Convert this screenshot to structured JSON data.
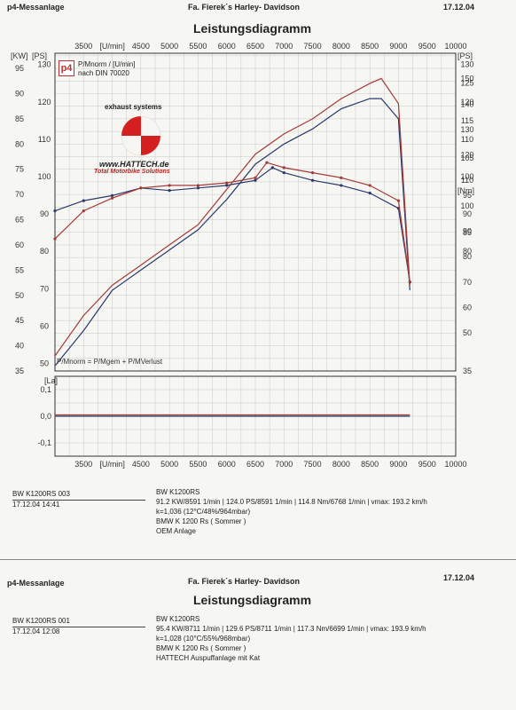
{
  "page1": {
    "header_left": "p4-Messanlage",
    "header_center": "Fa. Fierek´s  Harley- Davidson",
    "header_date": "17.12.04",
    "title": "Leistungsdiagramm",
    "run_id": "BW K1200RS 003",
    "run_date": "17.12.04   14:41",
    "model": "BW K1200RS",
    "result_line": "91.2 KW/8591 1/min  |  124.0 PS/8591 1/min  |  114.8 Nm/6768 1/min | vmax: 193.2 km/h",
    "corr_line": "k=1,036 (12°C/48%/964mbar)",
    "bike": "BMW K 1200 Rs ( Sommer )",
    "config": "OEM Anlage"
  },
  "page2": {
    "header_left": "p4-Messanlage",
    "header_center": "Fa. Fierek´s  Harley- Davidson",
    "header_date": "17.12.04",
    "title": "Leistungsdiagramm",
    "run_id": "BW K1200RS 001",
    "run_date": "17.12.04   12:08",
    "model": "BW K1200RS",
    "result_line": "95.4 KW/8711 1/min  |  129.6 PS/8711 1/min  |  117.3 Nm/6699 1/min | vmax: 193.9 km/h",
    "corr_line": "k=1,028 (10°C/55%/968mbar)",
    "bike": "BMW K 1200 Rs ( Sommer )",
    "config": "HATTECH Auspuffanlage mit Kat"
  },
  "logo": {
    "p4_text": "p4",
    "legend_line1": "P/Mnorm / [U/min]",
    "legend_line2": "nach DIN 70020",
    "brand_caption": "exhaust systems",
    "brand_url": "www.HATTECH.de",
    "brand_slogan": "Total Motorbike Solutions"
  },
  "colors": {
    "oem": "#2a3a6a",
    "hattech": "#a33a3a",
    "grid": "#c8c8c8"
  },
  "chart_data": [
    {
      "type": "line",
      "x_unit": "U/min",
      "xlim": [
        3000,
        10000
      ],
      "x_ticks": [
        "3500",
        "[U/min]",
        "4500",
        "5000",
        "5500",
        "6000",
        "6500",
        "7000",
        "7500",
        "8000",
        "8500",
        "9000",
        "9500",
        "10000"
      ],
      "left_axis_kw": {
        "label": "[KW]",
        "ylim": [
          35,
          98
        ],
        "ticks": [
          "35",
          "40",
          "45",
          "50",
          "55",
          "60",
          "65",
          "70",
          "75",
          "80",
          "85",
          "90",
          "95"
        ]
      },
      "left_axis_ps": {
        "label": "[PS]",
        "ylim": [
          48,
          133
        ],
        "ticks": [
          "50",
          "60",
          "70",
          "80",
          "90",
          "100",
          "110",
          "120",
          "130"
        ]
      },
      "right_axis_ps": {
        "label": "[PS]",
        "ticks": [
          "130",
          "125",
          "120",
          "115",
          "110",
          "105",
          "100",
          "95",
          "90",
          "85",
          "80"
        ]
      },
      "right_axis_nm": {
        "label": "[Nm]",
        "ylim": [
          35,
          160
        ],
        "ticks": [
          "150",
          "140",
          "130",
          "120",
          "110",
          "100",
          "90",
          "80",
          "70",
          "60",
          "50",
          "35"
        ]
      },
      "annotation": "P/Mnorm = P/Mgem + P/MVerlust",
      "series": [
        {
          "name": "BW K1200RS 003",
          "quantity": "power_kw",
          "axis": "kw",
          "x": [
            3000,
            3500,
            4000,
            4500,
            5000,
            5500,
            6000,
            6500,
            7000,
            7500,
            8000,
            8500,
            8700,
            9000,
            9200
          ],
          "y": [
            36,
            43,
            51,
            55,
            59,
            63,
            69,
            76,
            80,
            83,
            87,
            89,
            89,
            85,
            51
          ]
        },
        {
          "name": "BW K1200RS 001",
          "quantity": "power_kw",
          "axis": "kw",
          "x": [
            3000,
            3500,
            4000,
            4500,
            5000,
            5500,
            6000,
            6500,
            7000,
            7500,
            8000,
            8500,
            8700,
            9000,
            9200
          ],
          "y": [
            38,
            46,
            52,
            56,
            60,
            64,
            71,
            78,
            82,
            85,
            89,
            92,
            93,
            88,
            52
          ]
        },
        {
          "name": "BW K1200RS 003",
          "quantity": "torque_nm",
          "axis": "nm",
          "x": [
            3000,
            3500,
            4000,
            4500,
            5000,
            5500,
            6000,
            6500,
            6800,
            7000,
            7500,
            8000,
            8500,
            9000,
            9200
          ],
          "y": [
            98,
            102,
            104,
            107,
            106,
            107,
            108,
            110,
            115,
            113,
            110,
            108,
            105,
            99,
            70
          ]
        },
        {
          "name": "BW K1200RS 001",
          "quantity": "torque_nm",
          "axis": "nm",
          "x": [
            3000,
            3500,
            4000,
            4500,
            5000,
            5500,
            6000,
            6500,
            6700,
            7000,
            7500,
            8000,
            8500,
            9000,
            9200
          ],
          "y": [
            87,
            98,
            103,
            107,
            108,
            108,
            109,
            111,
            117,
            115,
            113,
            111,
            108,
            102,
            70
          ]
        }
      ]
    },
    {
      "type": "line",
      "y_label": "[La]",
      "ylim": [
        -0.15,
        0.15
      ],
      "y_ticks": [
        "0,1",
        "0,0",
        "-0,1"
      ],
      "x_ticks": [
        "3500",
        "[U/min]",
        "4500",
        "5000",
        "5500",
        "6000",
        "6500",
        "7000",
        "7500",
        "8000",
        "8500",
        "9000",
        "9500",
        "10000"
      ],
      "series": [
        {
          "name": "BW K1200RS 003",
          "x": [
            3000,
            9200
          ],
          "y": [
            0.0,
            0.0
          ]
        },
        {
          "name": "BW K1200RS 001",
          "x": [
            3000,
            9200
          ],
          "y": [
            0.005,
            0.005
          ]
        }
      ]
    }
  ]
}
